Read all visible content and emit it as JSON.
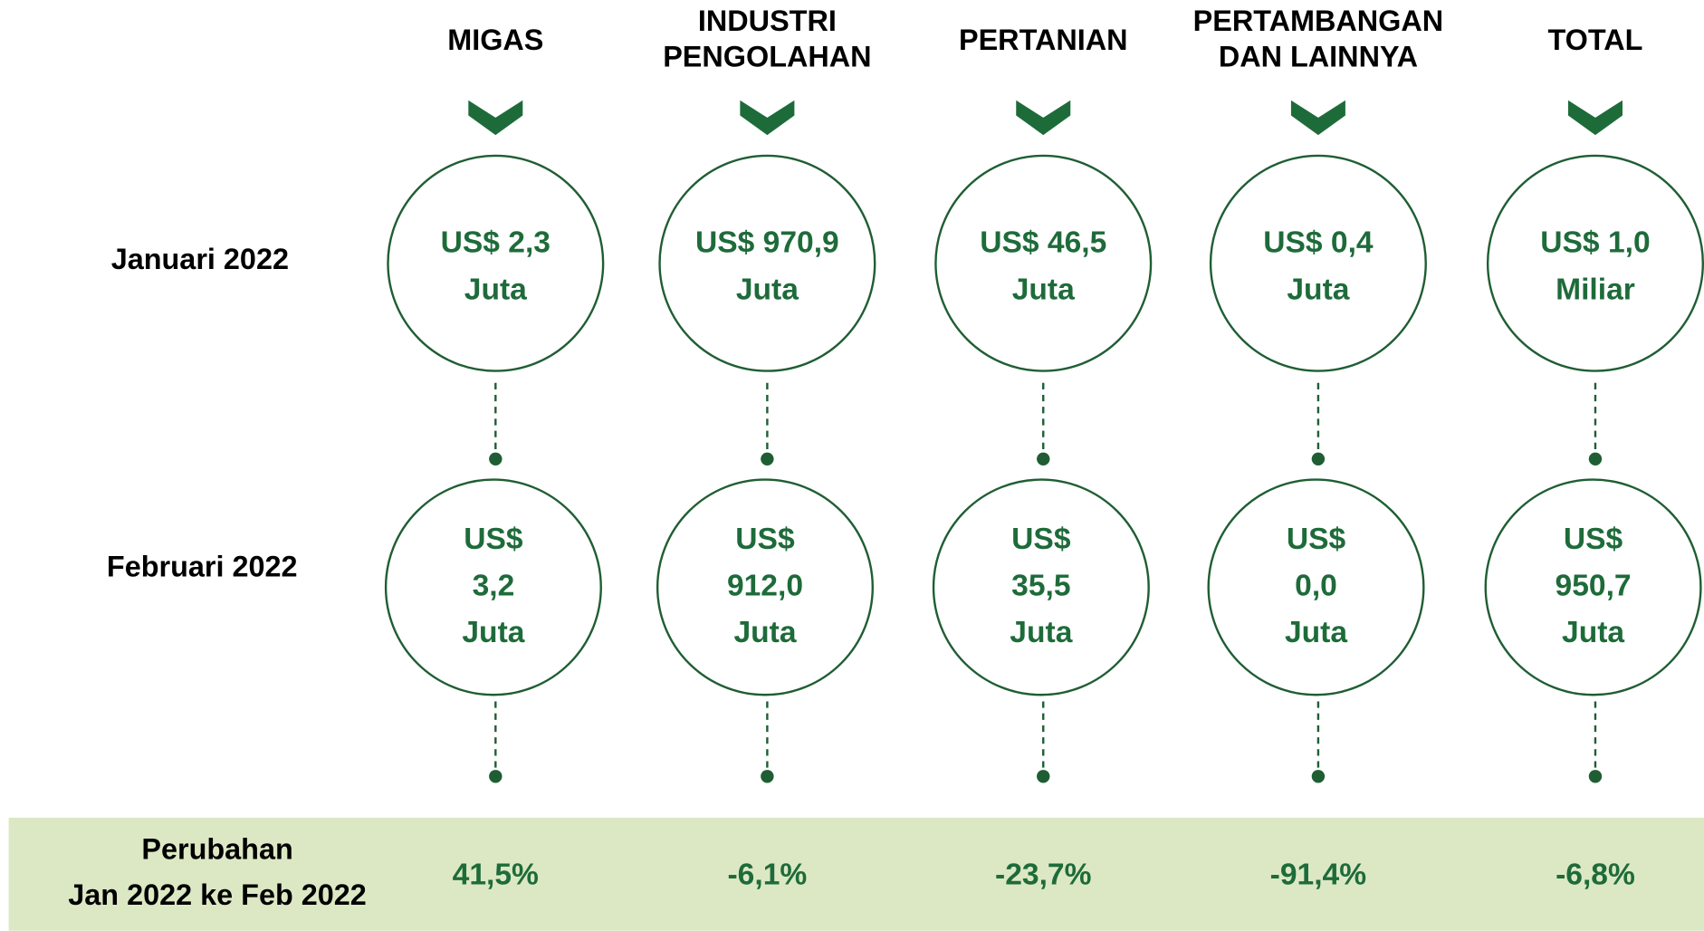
{
  "row_labels": {
    "january": "Januari 2022",
    "february": "Februari 2022",
    "change": [
      "Perubahan",
      "Jan 2022 ke Feb 2022"
    ]
  },
  "columns": [
    {
      "header": [
        "MIGAS"
      ],
      "january": [
        "US$ 2,3",
        "Juta"
      ],
      "february": [
        "US$",
        "3,2",
        "Juta"
      ],
      "change": "41,5%"
    },
    {
      "header": [
        "INDUSTRI",
        "PENGOLAHAN"
      ],
      "january": [
        "US$  970,9",
        "Juta"
      ],
      "february": [
        "US$",
        "912,0",
        "Juta"
      ],
      "change": "-6,1%"
    },
    {
      "header": [
        "PERTANIAN"
      ],
      "january": [
        "US$ 46,5",
        "Juta"
      ],
      "february": [
        "US$",
        "35,5",
        "Juta"
      ],
      "change": "-23,7%"
    },
    {
      "header": [
        "PERTAMBANGAN",
        "DAN LAINNYA"
      ],
      "january": [
        "US$ 0,4",
        "Juta"
      ],
      "february": [
        "US$",
        "0,0",
        "Juta"
      ],
      "change": "-91,4%"
    },
    {
      "header": [
        "TOTAL"
      ],
      "january": [
        "US$ 1,0",
        "Miliar"
      ],
      "february": [
        "US$",
        "950,7",
        "Juta"
      ],
      "change": "-6,8%"
    }
  ]
}
